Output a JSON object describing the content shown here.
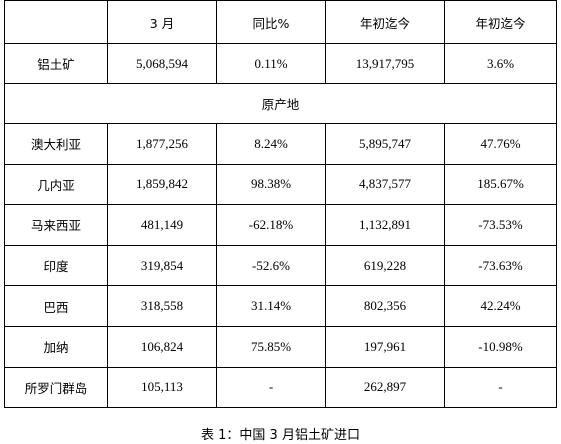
{
  "table": {
    "headers": [
      "",
      "3 月",
      "同比%",
      "年初迄今",
      "年初迄今"
    ],
    "total_row": {
      "label": "铝土矿",
      "values": [
        "5,068,594",
        "0.11%",
        "13,917,795",
        "3.6%"
      ]
    },
    "section_label": "原产地",
    "rows": [
      {
        "label": "澳大利亚",
        "values": [
          "1,877,256",
          "8.24%",
          "5,895,747",
          "47.76%"
        ]
      },
      {
        "label": "几内亚",
        "values": [
          "1,859,842",
          "98.38%",
          "4,837,577",
          "185.67%"
        ]
      },
      {
        "label": "马来西亚",
        "values": [
          "481,149",
          "-62.18%",
          "1,132,891",
          "-73.53%"
        ]
      },
      {
        "label": "印度",
        "values": [
          "319,854",
          "-52.6%",
          "619,228",
          "-73.63%"
        ]
      },
      {
        "label": "巴西",
        "values": [
          "318,558",
          "31.14%",
          "802,356",
          "42.24%"
        ]
      },
      {
        "label": "加纳",
        "values": [
          "106,824",
          "75.85%",
          "197,961",
          "-10.98%"
        ]
      },
      {
        "label": "所罗门群岛",
        "values": [
          "105,113",
          "-",
          "262,897",
          "-"
        ]
      }
    ]
  },
  "caption": "表 1：中国 3 月铝土矿进口"
}
